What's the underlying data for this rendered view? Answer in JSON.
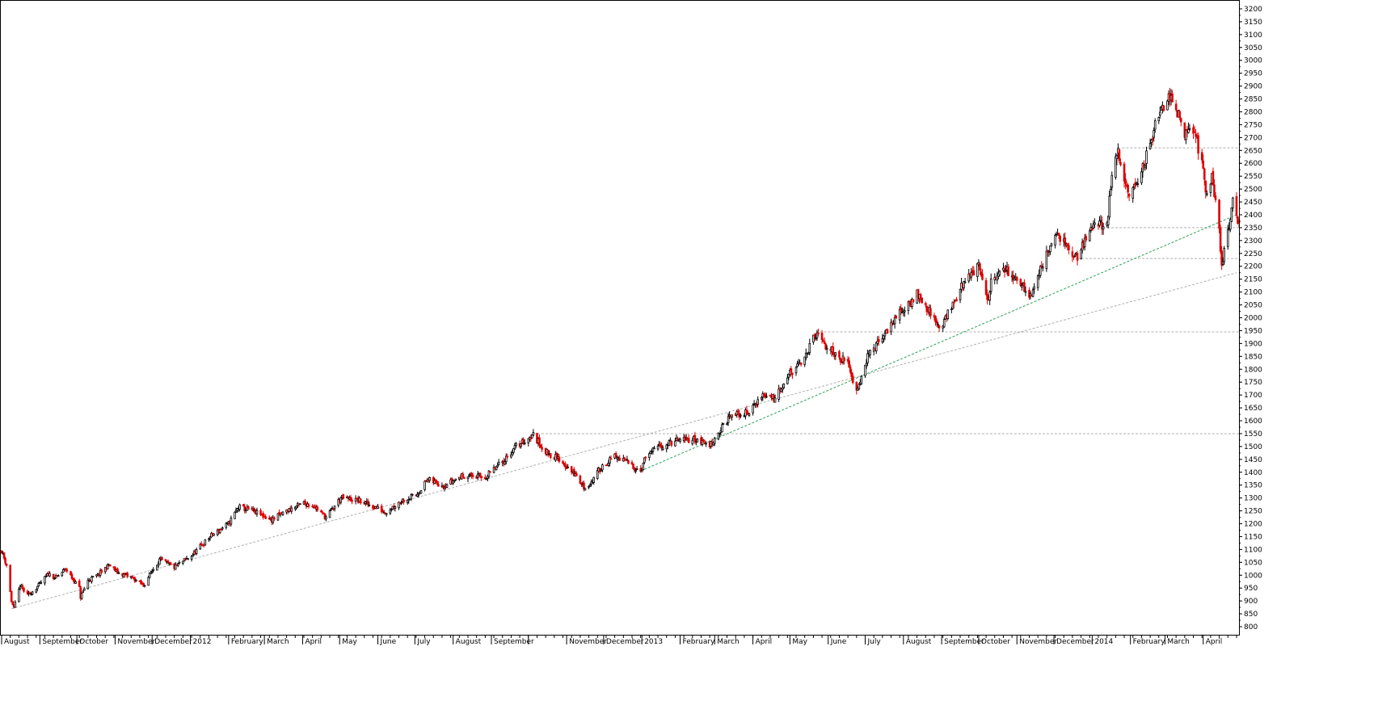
{
  "chart_data": {
    "type": "candlestick",
    "title": "",
    "xlabel": "",
    "ylabel": "",
    "ylim": [
      775,
      3225
    ],
    "y_ticks": [
      800,
      850,
      900,
      950,
      1000,
      1050,
      1100,
      1150,
      1200,
      1250,
      1300,
      1350,
      1400,
      1450,
      1500,
      1550,
      1600,
      1650,
      1700,
      1750,
      1800,
      1850,
      1900,
      1950,
      2000,
      2050,
      2100,
      2150,
      2200,
      2250,
      2300,
      2350,
      2400,
      2450,
      2500,
      2550,
      2600,
      2650,
      2700,
      2750,
      2800,
      2850,
      2900,
      2950,
      3000,
      3050,
      3100,
      3150,
      3200
    ],
    "x_range": [
      "2011-08-01",
      "2014-04-30"
    ],
    "x_ticks": [
      {
        "date": "2011-08-01",
        "label": "August"
      },
      {
        "date": "2011-09-01",
        "label": "September"
      },
      {
        "date": "2011-10-01",
        "label": "October"
      },
      {
        "date": "2011-11-01",
        "label": "November"
      },
      {
        "date": "2011-12-01",
        "label": "December"
      },
      {
        "date": "2012-01-01",
        "label": "2012"
      },
      {
        "date": "2012-02-01",
        "label": "February"
      },
      {
        "date": "2012-03-01",
        "label": "March"
      },
      {
        "date": "2012-04-01",
        "label": "April"
      },
      {
        "date": "2012-05-01",
        "label": "May"
      },
      {
        "date": "2012-06-01",
        "label": "June"
      },
      {
        "date": "2012-07-01",
        "label": "July"
      },
      {
        "date": "2012-08-01",
        "label": "August"
      },
      {
        "date": "2012-09-01",
        "label": "September"
      },
      {
        "date": "2012-10-01",
        "label": ""
      },
      {
        "date": "2012-11-01",
        "label": "November"
      },
      {
        "date": "2012-12-01",
        "label": "December"
      },
      {
        "date": "2013-01-01",
        "label": "2013"
      },
      {
        "date": "2013-02-01",
        "label": "February"
      },
      {
        "date": "2013-03-01",
        "label": "March"
      },
      {
        "date": "2013-04-01",
        "label": "April"
      },
      {
        "date": "2013-05-01",
        "label": "May"
      },
      {
        "date": "2013-06-01",
        "label": "June"
      },
      {
        "date": "2013-07-01",
        "label": "July"
      },
      {
        "date": "2013-08-01",
        "label": "August"
      },
      {
        "date": "2013-09-01",
        "label": "September"
      },
      {
        "date": "2013-10-01",
        "label": "October"
      },
      {
        "date": "2013-11-01",
        "label": "November"
      },
      {
        "date": "2013-12-01",
        "label": "December"
      },
      {
        "date": "2014-01-01",
        "label": "2014"
      },
      {
        "date": "2014-02-01",
        "label": "February"
      },
      {
        "date": "2014-03-01",
        "label": "March"
      },
      {
        "date": "2014-04-01",
        "label": "April"
      }
    ],
    "price_path": [
      [
        "2011-08-01",
        1095
      ],
      [
        "2011-08-05",
        1040
      ],
      [
        "2011-08-09",
        900
      ],
      [
        "2011-08-11",
        870
      ],
      [
        "2011-08-16",
        960
      ],
      [
        "2011-08-22",
        920
      ],
      [
        "2011-08-31",
        960
      ],
      [
        "2011-09-08",
        1005
      ],
      [
        "2011-09-14",
        990
      ],
      [
        "2011-09-22",
        1025
      ],
      [
        "2011-09-27",
        990
      ],
      [
        "2011-10-03",
        950
      ],
      [
        "2011-10-04",
        915
      ],
      [
        "2011-10-10",
        980
      ],
      [
        "2011-10-18",
        1000
      ],
      [
        "2011-10-27",
        1040
      ],
      [
        "2011-11-03",
        1010
      ],
      [
        "2011-11-15",
        990
      ],
      [
        "2011-11-24",
        960
      ],
      [
        "2011-11-30",
        1010
      ],
      [
        "2011-12-07",
        1060
      ],
      [
        "2011-12-19",
        1030
      ],
      [
        "2012-01-03",
        1080
      ],
      [
        "2012-01-17",
        1150
      ],
      [
        "2012-02-01",
        1200
      ],
      [
        "2012-02-09",
        1265
      ],
      [
        "2012-02-20",
        1250
      ],
      [
        "2012-03-07",
        1215
      ],
      [
        "2012-03-19",
        1250
      ],
      [
        "2012-04-02",
        1280
      ],
      [
        "2012-04-10",
        1270
      ],
      [
        "2012-04-20",
        1225
      ],
      [
        "2012-05-02",
        1300
      ],
      [
        "2012-05-16",
        1290
      ],
      [
        "2012-06-01",
        1260
      ],
      [
        "2012-06-07",
        1245
      ],
      [
        "2012-06-20",
        1290
      ],
      [
        "2012-07-02",
        1310
      ],
      [
        "2012-07-11",
        1370
      ],
      [
        "2012-07-25",
        1350
      ],
      [
        "2012-08-10",
        1390
      ],
      [
        "2012-08-27",
        1380
      ],
      [
        "2012-09-10",
        1440
      ],
      [
        "2012-09-21",
        1500
      ],
      [
        "2012-10-05",
        1545
      ],
      [
        "2012-10-15",
        1480
      ],
      [
        "2012-10-26",
        1450
      ],
      [
        "2012-11-08",
        1390
      ],
      [
        "2012-11-15",
        1340
      ],
      [
        "2012-11-21",
        1360
      ],
      [
        "2012-11-29",
        1420
      ],
      [
        "2012-12-10",
        1460
      ],
      [
        "2012-12-20",
        1440
      ],
      [
        "2012-12-31",
        1405
      ],
      [
        "2013-01-04",
        1460
      ],
      [
        "2013-01-15",
        1500
      ],
      [
        "2013-01-28",
        1520
      ],
      [
        "2013-02-12",
        1530
      ],
      [
        "2013-02-25",
        1505
      ],
      [
        "2013-03-05",
        1560
      ],
      [
        "2013-03-14",
        1620
      ],
      [
        "2013-03-28",
        1630
      ],
      [
        "2013-04-09",
        1700
      ],
      [
        "2013-04-18",
        1690
      ],
      [
        "2013-04-30",
        1780
      ],
      [
        "2013-05-10",
        1820
      ],
      [
        "2013-05-22",
        1935
      ],
      [
        "2013-05-30",
        1890
      ],
      [
        "2013-06-07",
        1860
      ],
      [
        "2013-06-17",
        1820
      ],
      [
        "2013-06-24",
        1720
      ],
      [
        "2013-07-03",
        1850
      ],
      [
        "2013-07-15",
        1920
      ],
      [
        "2013-07-25",
        2000
      ],
      [
        "2013-08-06",
        2050
      ],
      [
        "2013-08-12",
        2100
      ],
      [
        "2013-08-20",
        2040
      ],
      [
        "2013-08-30",
        1960
      ],
      [
        "2013-09-10",
        2050
      ],
      [
        "2013-09-20",
        2150
      ],
      [
        "2013-10-01",
        2200
      ],
      [
        "2013-10-09",
        2050
      ],
      [
        "2013-10-11",
        2150
      ],
      [
        "2013-10-23",
        2190
      ],
      [
        "2013-11-01",
        2150
      ],
      [
        "2013-11-11",
        2080
      ],
      [
        "2013-11-21",
        2200
      ],
      [
        "2013-12-02",
        2330
      ],
      [
        "2013-12-12",
        2270
      ],
      [
        "2013-12-20",
        2230
      ],
      [
        "2014-01-02",
        2370
      ],
      [
        "2014-01-13",
        2360
      ],
      [
        "2014-01-17",
        2550
      ],
      [
        "2014-01-22",
        2650
      ],
      [
        "2014-01-30",
        2470
      ],
      [
        "2014-02-10",
        2560
      ],
      [
        "2014-02-18",
        2700
      ],
      [
        "2014-02-25",
        2800
      ],
      [
        "2014-03-05",
        2870
      ],
      [
        "2014-03-10",
        2820
      ],
      [
        "2014-03-17",
        2700
      ],
      [
        "2014-03-24",
        2740
      ],
      [
        "2014-03-31",
        2600
      ],
      [
        "2014-04-04",
        2480
      ],
      [
        "2014-04-08",
        2550
      ],
      [
        "2014-04-14",
        2330
      ],
      [
        "2014-04-16",
        2200
      ],
      [
        "2014-04-21",
        2330
      ],
      [
        "2014-04-25",
        2460
      ],
      [
        "2014-04-29",
        2380
      ]
    ],
    "support_lines": [
      {
        "from": [
          "2011-08-09",
          870
        ],
        "to": [
          "2014-04-28",
          2175
        ],
        "color": "#b0b0b0"
      },
      {
        "from": [
          "2012-12-31",
          1405
        ],
        "to": [
          "2014-04-28",
          2400
        ],
        "color": "#2ca05a"
      }
    ],
    "horizontal_levels": [
      {
        "value": 1550,
        "from": "2012-10-05"
      },
      {
        "value": 1945,
        "from": "2013-05-22"
      },
      {
        "value": 2230,
        "from": "2013-12-20"
      },
      {
        "value": 2350,
        "from": "2014-01-10"
      },
      {
        "value": 2660,
        "from": "2014-01-22"
      }
    ],
    "colors": {
      "up": "#000000",
      "down": "#e00000",
      "level": "#b0b0b0",
      "axis": "#000000"
    },
    "grid": false,
    "legend": "none"
  }
}
